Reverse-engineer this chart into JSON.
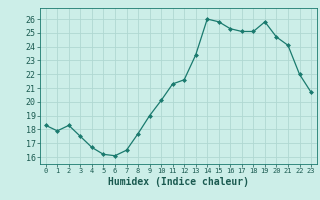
{
  "x": [
    0,
    1,
    2,
    3,
    4,
    5,
    6,
    7,
    8,
    9,
    10,
    11,
    12,
    13,
    14,
    15,
    16,
    17,
    18,
    19,
    20,
    21,
    22,
    23
  ],
  "y": [
    18.3,
    17.9,
    18.3,
    17.5,
    16.7,
    16.2,
    16.1,
    16.5,
    17.7,
    19.0,
    20.1,
    21.3,
    21.6,
    23.4,
    26.0,
    25.8,
    25.3,
    25.1,
    25.1,
    25.8,
    24.7,
    24.1,
    22.0,
    20.7
  ],
  "xlabel": "Humidex (Indice chaleur)",
  "ylim": [
    15.5,
    26.8
  ],
  "xlim": [
    -0.5,
    23.5
  ],
  "yticks": [
    16,
    17,
    18,
    19,
    20,
    21,
    22,
    23,
    24,
    25,
    26
  ],
  "xticks": [
    0,
    1,
    2,
    3,
    4,
    5,
    6,
    7,
    8,
    9,
    10,
    11,
    12,
    13,
    14,
    15,
    16,
    17,
    18,
    19,
    20,
    21,
    22,
    23
  ],
  "line_color": "#1a7a6e",
  "marker_color": "#1a7a6e",
  "bg_color": "#cceee8",
  "grid_color": "#b0d8d2"
}
